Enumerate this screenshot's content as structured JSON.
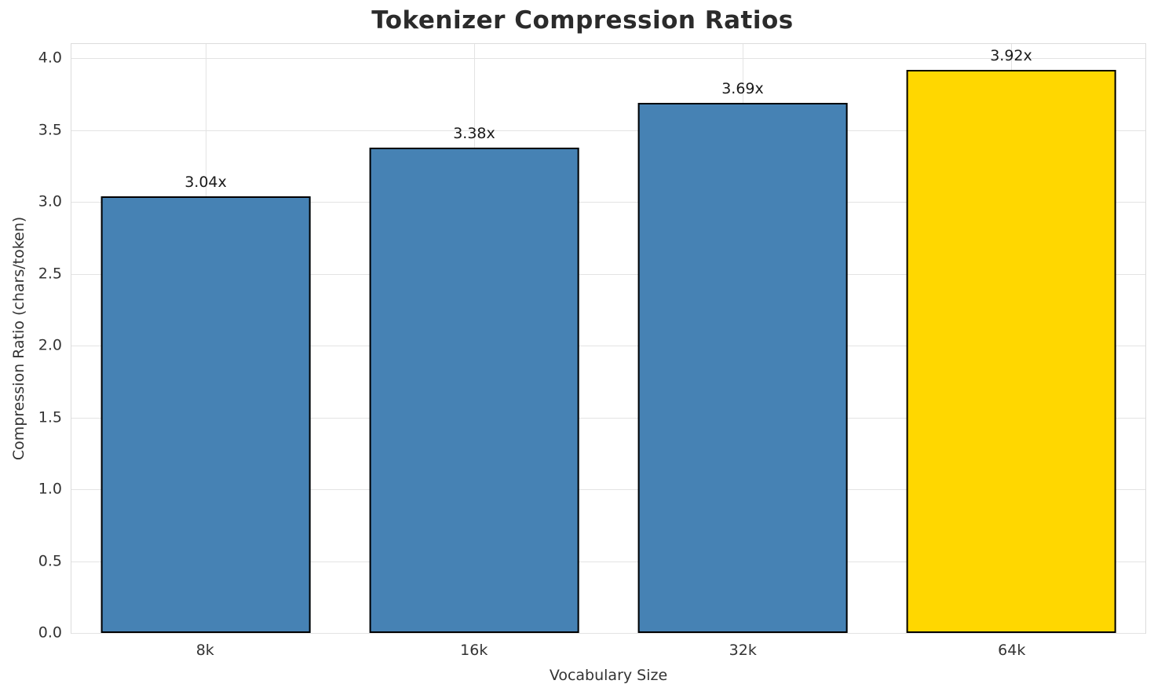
{
  "chart_data": {
    "type": "bar",
    "title": "Tokenizer Compression Ratios",
    "xlabel": "Vocabulary Size",
    "ylabel": "Compression Ratio (chars/token)",
    "categories": [
      "8k",
      "16k",
      "32k",
      "64k"
    ],
    "values": [
      3.04,
      3.38,
      3.69,
      3.92
    ],
    "bar_value_labels": [
      "3.04x",
      "3.38x",
      "3.69x",
      "3.92x"
    ],
    "bar_colors": [
      "#4682B4",
      "#4682B4",
      "#4682B4",
      "#FFD700"
    ],
    "bar_edge_color": "#000000",
    "yticks": [
      0.0,
      0.5,
      1.0,
      1.5,
      2.0,
      2.5,
      3.0,
      3.5,
      4.0
    ],
    "ytick_labels": [
      "0.0",
      "0.5",
      "1.0",
      "1.5",
      "2.0",
      "2.5",
      "3.0",
      "3.5",
      "4.0"
    ],
    "ylim": [
      0,
      4.1
    ],
    "grid": true,
    "legend_position": "none"
  }
}
